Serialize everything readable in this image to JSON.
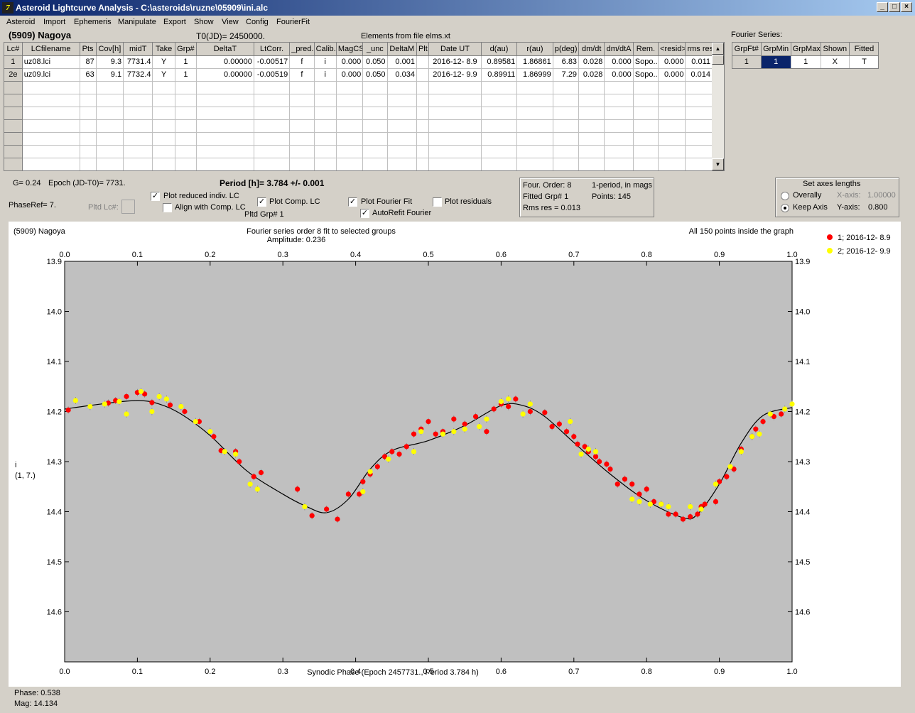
{
  "window": {
    "title": "Asteroid Lightcurve Analysis - C:\\asteroids\\ruzne\\05909\\ini.alc",
    "icon": "app-icon",
    "min": "_",
    "max": "□",
    "close": "×"
  },
  "menu": [
    "Asteroid",
    "Import",
    "Ephemeris",
    "Manipulate",
    "Export",
    "Show",
    "View",
    "Config",
    "FourierFit"
  ],
  "header": {
    "asteroid": "(5909) Nagoya",
    "t0": "T0(JD)= 2450000.",
    "elements": "Elements from file elms.xt",
    "fourier_label": "Fourier Series:"
  },
  "lc_table": {
    "columns": [
      "Lc#",
      "LCfilename",
      "Pts",
      "Cov[h]",
      "midT",
      "Take",
      "Grp#",
      "DeltaT",
      "LtCorr.",
      "_pred.",
      "Calib.",
      "MagCS",
      "_unc",
      "DeltaM",
      "Plt",
      "Date UT",
      "d(au)",
      "r(au)",
      "p(deg)",
      "dm/dt",
      "dm/dtA",
      "Rem.",
      "<resid>",
      "rms res"
    ],
    "rows": [
      [
        "1",
        "uz08.lci",
        "87",
        "9.3",
        "7731.4",
        "Y",
        "1",
        "0.00000",
        "-0.00517",
        "f",
        "i",
        "0.000",
        "0.050",
        "0.001",
        "",
        "2016-12- 8.9",
        "0.89581",
        "1.86861",
        "6.83",
        "0.028",
        "0.000",
        "Sopo...",
        "0.000",
        "0.011"
      ],
      [
        "2e",
        "uz09.lci",
        "63",
        "9.1",
        "7732.4",
        "Y",
        "1",
        "0.00000",
        "-0.00519",
        "f",
        "i",
        "0.000",
        "0.050",
        "0.034",
        "",
        "2016-12- 9.9",
        "0.89911",
        "1.86999",
        "7.29",
        "0.028",
        "0.000",
        "Sopo...",
        "0.000",
        "0.014"
      ]
    ]
  },
  "fourier_table": {
    "columns": [
      "GrpFt#",
      "GrpMin",
      "GrpMax",
      "Shown",
      "Fitted"
    ],
    "row": [
      "1",
      "1",
      "1",
      "X",
      "T"
    ]
  },
  "controls": {
    "g": "G= 0.24",
    "epoch": "Epoch (JD-T0)= 7731.",
    "period": "Period [h]= 3.784 +/- 0.001",
    "phaseref": "PhaseRef= 7.",
    "pltd_lc": "Pltd Lc#:",
    "plot_reduced": "Plot reduced indiv. LC",
    "align_comp": "Align with Comp. LC",
    "plot_comp": "Plot Comp. LC",
    "pltd_grp": "Pltd Grp#  1",
    "plot_fourier": "Plot Fourier Fit",
    "autorefit": "AutoRefit Fourier",
    "plot_residuals": "Plot residuals",
    "four_order": "Four. Order:  8",
    "one_period": "1-period,  in mags",
    "fitted_grp": "Fitted Grp# 1",
    "points": "Points: 145",
    "rms": "Rms res    = 0.013",
    "axes_title": "Set axes lengths",
    "overally": "Overally",
    "keep_axis": "Keep Axis",
    "xaxis_label": "X-axis:",
    "xaxis_val": "1.00000",
    "yaxis_label": "Y-axis:",
    "yaxis_val": "0.800"
  },
  "status": {
    "phase": "Phase:  0.538",
    "mag": "Mag:    14.134"
  },
  "chart_data": {
    "type": "scatter",
    "title": "Fourier series order 8 fit to selected groups",
    "subtitle": "Amplitude: 0.236",
    "left_note": "(5909) Nagoya",
    "right_note": "All 150 points inside the graph",
    "xlabel": "Synodic Phase (Epoch 2457731., Period 3.784 h)",
    "ylabel": "i",
    "ylabel2": "(1, 7.)",
    "xlim": [
      0,
      1
    ],
    "ylim": [
      13.9,
      14.7
    ],
    "y_inverted": true,
    "xticks": [
      "0.0",
      "0.1",
      "0.2",
      "0.3",
      "0.4",
      "0.5",
      "0.6",
      "0.7",
      "0.8",
      "0.9",
      "1.0"
    ],
    "yticks": [
      "13.9",
      "14.0",
      "14.1",
      "14.2",
      "14.3",
      "14.4",
      "14.5",
      "14.6"
    ],
    "fourier_fit": {
      "x": [
        0,
        0.05,
        0.1,
        0.13,
        0.16,
        0.2,
        0.25,
        0.3,
        0.33,
        0.36,
        0.39,
        0.42,
        0.45,
        0.5,
        0.55,
        0.6,
        0.63,
        0.66,
        0.7,
        0.75,
        0.8,
        0.85,
        0.87,
        0.9,
        0.93,
        0.96,
        1.0
      ],
      "y": [
        14.195,
        14.185,
        14.178,
        14.185,
        14.205,
        14.248,
        14.318,
        14.365,
        14.388,
        14.402,
        14.375,
        14.315,
        14.278,
        14.258,
        14.228,
        14.188,
        14.188,
        14.21,
        14.262,
        14.325,
        14.378,
        14.412,
        14.405,
        14.345,
        14.263,
        14.208,
        14.192
      ]
    },
    "series": [
      {
        "name": "1; 2016-12- 8.9",
        "color": "#ff0000",
        "x": [
          0.005,
          0.06,
          0.07,
          0.085,
          0.1,
          0.11,
          0.12,
          0.145,
          0.165,
          0.185,
          0.205,
          0.215,
          0.235,
          0.24,
          0.26,
          0.27,
          0.32,
          0.34,
          0.36,
          0.375,
          0.39,
          0.405,
          0.41,
          0.42,
          0.43,
          0.44,
          0.45,
          0.46,
          0.47,
          0.48,
          0.49,
          0.5,
          0.51,
          0.52,
          0.535,
          0.55,
          0.565,
          0.58,
          0.59,
          0.6,
          0.61,
          0.62,
          0.64,
          0.66,
          0.67,
          0.68,
          0.69,
          0.7,
          0.705,
          0.715,
          0.72,
          0.73,
          0.735,
          0.745,
          0.75,
          0.76,
          0.77,
          0.78,
          0.79,
          0.8,
          0.81,
          0.82,
          0.83,
          0.84,
          0.85,
          0.86,
          0.87,
          0.875,
          0.88,
          0.895,
          0.9,
          0.91,
          0.92,
          0.93,
          0.945,
          0.95,
          0.96,
          0.975,
          0.985
        ],
        "y": [
          14.197,
          14.183,
          14.178,
          14.17,
          14.162,
          14.165,
          14.182,
          14.187,
          14.2,
          14.22,
          14.25,
          14.278,
          14.28,
          14.3,
          14.33,
          14.322,
          14.355,
          14.408,
          14.395,
          14.415,
          14.365,
          14.365,
          14.34,
          14.325,
          14.31,
          14.29,
          14.28,
          14.285,
          14.27,
          14.245,
          14.235,
          14.22,
          14.245,
          14.24,
          14.215,
          14.225,
          14.21,
          14.24,
          14.195,
          14.185,
          14.19,
          14.175,
          14.2,
          14.202,
          14.23,
          14.225,
          14.24,
          14.25,
          14.265,
          14.27,
          14.28,
          14.29,
          14.3,
          14.305,
          14.315,
          14.345,
          14.335,
          14.345,
          14.365,
          14.355,
          14.38,
          14.385,
          14.405,
          14.405,
          14.415,
          14.41,
          14.405,
          14.39,
          14.385,
          14.38,
          14.34,
          14.33,
          14.315,
          14.275,
          14.25,
          14.235,
          14.22,
          14.21,
          14.205
        ]
      },
      {
        "name": "2; 2016-12- 9.9",
        "color": "#ffff00",
        "x": [
          0.015,
          0.035,
          0.055,
          0.075,
          0.085,
          0.105,
          0.12,
          0.13,
          0.14,
          0.16,
          0.18,
          0.2,
          0.22,
          0.235,
          0.255,
          0.265,
          0.33,
          0.41,
          0.42,
          0.445,
          0.48,
          0.49,
          0.52,
          0.535,
          0.55,
          0.57,
          0.58,
          0.6,
          0.61,
          0.63,
          0.64,
          0.695,
          0.71,
          0.72,
          0.73,
          0.78,
          0.79,
          0.805,
          0.82,
          0.83,
          0.86,
          0.875,
          0.895,
          0.915,
          0.93,
          0.945,
          0.955,
          0.97,
          0.99,
          1.0
        ],
        "y": [
          14.178,
          14.19,
          14.185,
          14.18,
          14.205,
          14.16,
          14.2,
          14.17,
          14.175,
          14.19,
          14.22,
          14.24,
          14.28,
          14.285,
          14.345,
          14.355,
          14.39,
          14.36,
          14.32,
          14.295,
          14.28,
          14.24,
          14.245,
          14.24,
          14.235,
          14.23,
          14.215,
          14.18,
          14.175,
          14.205,
          14.185,
          14.22,
          14.285,
          14.275,
          14.28,
          14.375,
          14.38,
          14.385,
          14.385,
          14.39,
          14.39,
          14.395,
          14.345,
          14.31,
          14.28,
          14.25,
          14.245,
          14.205,
          14.195,
          14.185
        ]
      }
    ]
  }
}
